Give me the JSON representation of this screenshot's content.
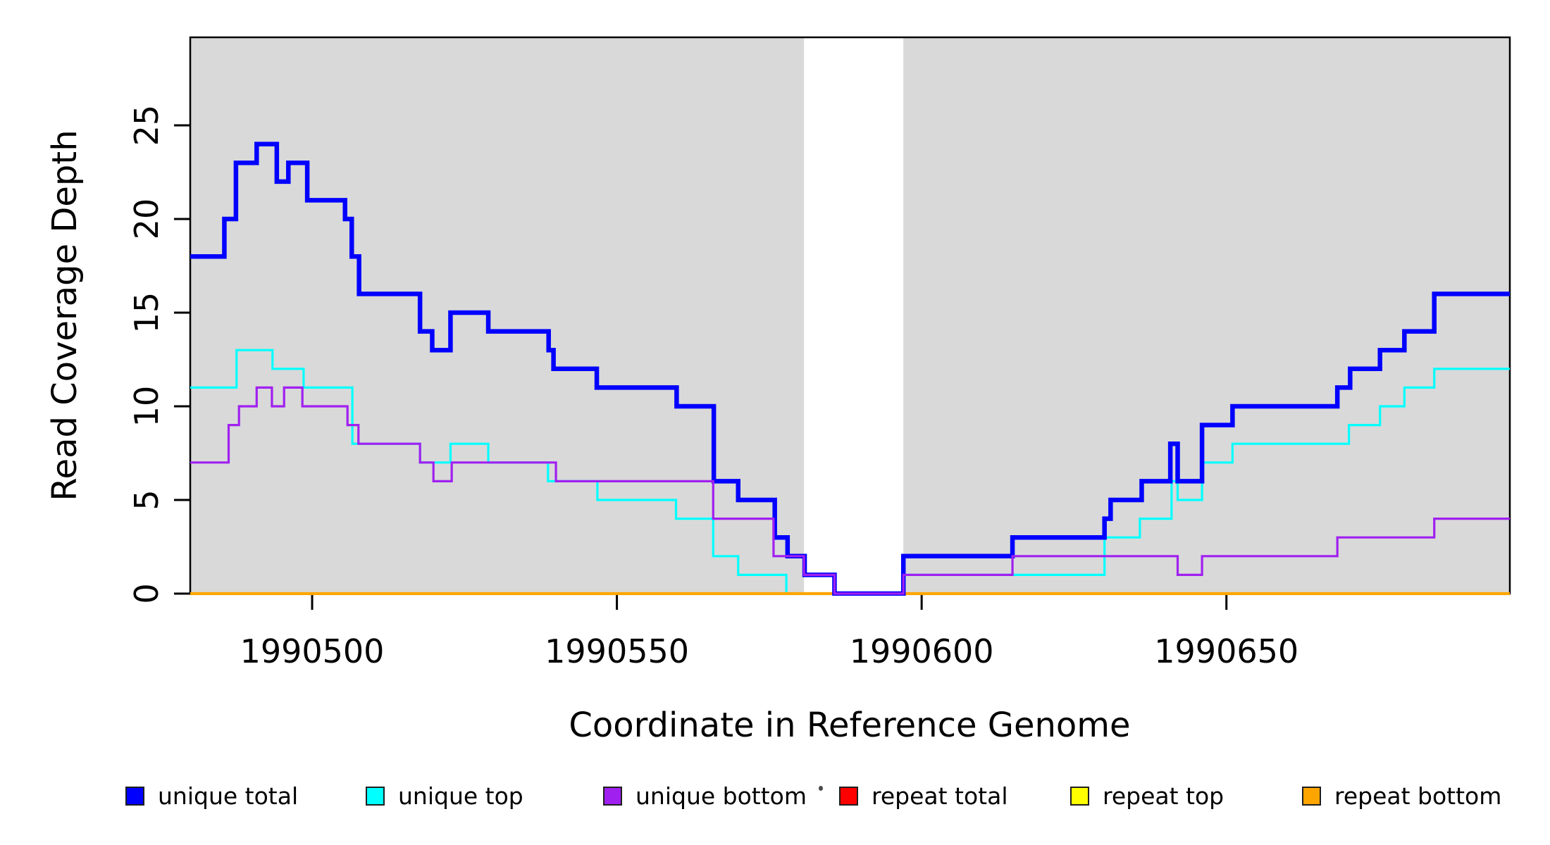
{
  "figure": {
    "x_axis_label": "Coordinate in Reference Genome",
    "y_axis_label": "Read Coverage Depth"
  },
  "chart_data": {
    "type": "line",
    "subtype": "step-post",
    "title": "",
    "xlabel": "Coordinate in Reference Genome",
    "ylabel": "Read Coverage Depth",
    "xlim": [
      1990480,
      1990696.5
    ],
    "ylim": [
      0,
      29.7
    ],
    "x_ticks": [
      1990500,
      1990550,
      1990600,
      1990650
    ],
    "y_ticks": [
      0,
      5,
      10,
      15,
      20,
      25
    ],
    "grid": false,
    "plot_background": "#ffffff",
    "shaded_regions": {
      "color": "#D9D9D9",
      "regions": [
        [
          1990480,
          1990580.7
        ],
        [
          1990597,
          1990696.5
        ]
      ],
      "note": "gray = covered region; white gap between 1990580.7 and 1990597"
    },
    "x_end": 1990696.5,
    "series": [
      {
        "name": "unique total",
        "color": "#0000FF",
        "line_width": 6.5,
        "z": 5,
        "points": [
          [
            1990480,
            18
          ],
          [
            1990485.6,
            20
          ],
          [
            1990487.5,
            23
          ],
          [
            1990490.9,
            24
          ],
          [
            1990494.2,
            22
          ],
          [
            1990496.1,
            23
          ],
          [
            1990499.2,
            21
          ],
          [
            1990505.4,
            20
          ],
          [
            1990506.5,
            18
          ],
          [
            1990507.7,
            16
          ],
          [
            1990517.7,
            14
          ],
          [
            1990519.7,
            13
          ],
          [
            1990522.7,
            15
          ],
          [
            1990528.9,
            14
          ],
          [
            1990538.8,
            13
          ],
          [
            1990539.6,
            12
          ],
          [
            1990546.7,
            11
          ],
          [
            1990559.8,
            10
          ],
          [
            1990565.9,
            6
          ],
          [
            1990569.9,
            5
          ],
          [
            1990575.9,
            3
          ],
          [
            1990578,
            2
          ],
          [
            1990580.8,
            1
          ],
          [
            1990585.7,
            0
          ],
          [
            1990597,
            2
          ],
          [
            1990614.9,
            3
          ],
          [
            1990630,
            4
          ],
          [
            1990631,
            5
          ],
          [
            1990636.1,
            6
          ],
          [
            1990640.8,
            8
          ],
          [
            1990642,
            6
          ],
          [
            1990646,
            9
          ],
          [
            1990651,
            10
          ],
          [
            1990668.2,
            11
          ],
          [
            1990670.3,
            12
          ],
          [
            1990675.2,
            13
          ],
          [
            1990679.2,
            14
          ],
          [
            1990684.1,
            16
          ]
        ]
      },
      {
        "name": "unique top",
        "color": "#00FFFF",
        "line_width": 3.2,
        "z": 3,
        "points": [
          [
            1990480,
            11
          ],
          [
            1990487.6,
            13
          ],
          [
            1990493.5,
            12
          ],
          [
            1990498.6,
            11
          ],
          [
            1990506.6,
            8
          ],
          [
            1990517.7,
            7
          ],
          [
            1990522.7,
            8
          ],
          [
            1990528.9,
            7
          ],
          [
            1990538.7,
            6
          ],
          [
            1990546.8,
            5
          ],
          [
            1990559.7,
            4
          ],
          [
            1990565.8,
            2
          ],
          [
            1990569.9,
            1
          ],
          [
            1990577.8,
            0
          ],
          [
            1990597,
            1
          ],
          [
            1990630,
            3
          ],
          [
            1990635.8,
            4
          ],
          [
            1990641,
            6
          ],
          [
            1990642,
            5
          ],
          [
            1990646,
            7
          ],
          [
            1990651,
            8
          ],
          [
            1990670.1,
            9
          ],
          [
            1990675.2,
            10
          ],
          [
            1990679.2,
            11
          ],
          [
            1990684.1,
            12
          ]
        ]
      },
      {
        "name": "unique bottom",
        "color": "#A020F0",
        "line_width": 3.2,
        "z": 6,
        "points": [
          [
            1990480,
            7
          ],
          [
            1990486.3,
            9
          ],
          [
            1990488,
            10
          ],
          [
            1990490.9,
            11
          ],
          [
            1990493.4,
            10
          ],
          [
            1990495.4,
            11
          ],
          [
            1990498.4,
            10
          ],
          [
            1990505.8,
            9
          ],
          [
            1990507.6,
            8
          ],
          [
            1990517.7,
            7
          ],
          [
            1990519.9,
            6
          ],
          [
            1990522.9,
            7
          ],
          [
            1990540,
            6
          ],
          [
            1990565.8,
            4
          ],
          [
            1990575.7,
            2
          ],
          [
            1990580.7,
            1
          ],
          [
            1990585.7,
            0
          ],
          [
            1990597,
            1
          ],
          [
            1990614.9,
            2
          ],
          [
            1990642,
            1
          ],
          [
            1990646,
            2
          ],
          [
            1990668.2,
            3
          ],
          [
            1990684.1,
            4
          ]
        ]
      },
      {
        "name": "repeat total",
        "color": "#FF0000",
        "line_width": 3.2,
        "z": 1,
        "points": [
          [
            1990480,
            0
          ]
        ]
      },
      {
        "name": "repeat top",
        "color": "#FFFF00",
        "line_width": 3.2,
        "z": 2,
        "points": [
          [
            1990480,
            0
          ]
        ]
      },
      {
        "name": "repeat bottom",
        "color": "#FFA500",
        "line_width": 4.2,
        "z": 4,
        "points": [
          [
            1990480,
            0
          ]
        ]
      }
    ],
    "legend_position": "bottom",
    "legend": [
      {
        "label": "unique total",
        "color": "#0000FF"
      },
      {
        "label": "unique top",
        "color": "#00FFFF"
      },
      {
        "label": "unique bottom",
        "color": "#A020F0"
      },
      {
        "label": "repeat total",
        "color": "#FF0000"
      },
      {
        "label": "repeat top",
        "color": "#FFFF00"
      },
      {
        "label": "repeat bottom",
        "color": "#FFA500"
      }
    ]
  }
}
